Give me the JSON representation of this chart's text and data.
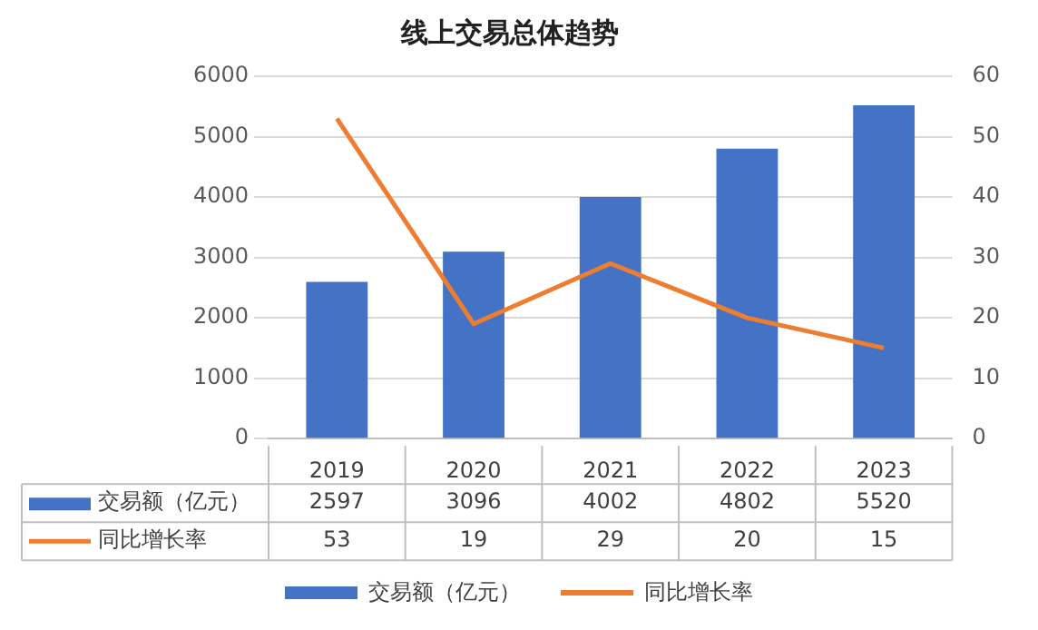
{
  "chart_data": {
    "type": "bar",
    "title": "线上交易总体趋势",
    "categories": [
      "2019",
      "2020",
      "2021",
      "2022",
      "2023"
    ],
    "series": [
      {
        "name": "交易额（亿元）",
        "color": "#4472c4",
        "values": [
          2597,
          3096,
          4002,
          4802,
          5520
        ]
      },
      {
        "name": "同比增长率",
        "type": "line",
        "axis": "y2",
        "color": "#ed7d31",
        "values": [
          53,
          19,
          29,
          20,
          15
        ]
      }
    ],
    "ylim": [
      0,
      6000
    ],
    "yticks": [
      0,
      1000,
      2000,
      3000,
      4000,
      5000,
      6000
    ],
    "y2lim": [
      0,
      60
    ],
    "y2ticks": [
      0,
      10,
      20,
      30,
      40,
      50,
      60
    ],
    "grid": "y",
    "legend": "bottom",
    "data_labels": true,
    "marker": "none"
  }
}
